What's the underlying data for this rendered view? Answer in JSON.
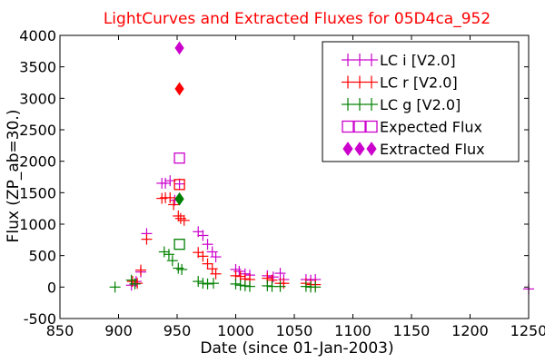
{
  "chart_data": {
    "type": "scatter",
    "title": "LightCurves and Extracted Fluxes for 05D4ca_952",
    "title_color": "#ff0000",
    "xlabel": "Date (since 01-Jan-2003)",
    "ylabel": "Flux (ZP_ab=30.)",
    "xlim": [
      850,
      1250
    ],
    "ylim": [
      -500,
      4000
    ],
    "xticks": [
      850,
      900,
      950,
      1000,
      1050,
      1100,
      1150,
      1200,
      1250
    ],
    "yticks": [
      -500,
      0,
      500,
      1000,
      1500,
      2000,
      2500,
      3000,
      3500,
      4000
    ],
    "grid": false,
    "legend_position": "top-right",
    "series": [
      {
        "name": "LC i [V2.0]",
        "marker": "plus",
        "color": "#cc00cc",
        "points": [
          [
            911,
            30
          ],
          [
            915,
            90
          ],
          [
            919,
            240
          ],
          [
            924,
            850
          ],
          [
            937,
            1650
          ],
          [
            940,
            1650
          ],
          [
            944,
            1690
          ],
          [
            948,
            1380
          ],
          [
            952,
            1640
          ],
          [
            968,
            880
          ],
          [
            972,
            820
          ],
          [
            976,
            680
          ],
          [
            980,
            560
          ],
          [
            983,
            480
          ],
          [
            1000,
            280
          ],
          [
            1003,
            250
          ],
          [
            1008,
            210
          ],
          [
            1012,
            190
          ],
          [
            1027,
            180
          ],
          [
            1032,
            160
          ],
          [
            1038,
            220
          ],
          [
            1041,
            120
          ],
          [
            1060,
            120
          ],
          [
            1064,
            110
          ],
          [
            1068,
            120
          ],
          [
            1250,
            -30
          ]
        ]
      },
      {
        "name": "LC r [V2.0]",
        "marker": "plus",
        "color": "#ff0000",
        "points": [
          [
            912,
            90
          ],
          [
            916,
            60
          ],
          [
            919,
            270
          ],
          [
            924,
            760
          ],
          [
            937,
            1410
          ],
          [
            940,
            1420
          ],
          [
            944,
            1420
          ],
          [
            947,
            1310
          ],
          [
            951,
            1130
          ],
          [
            953,
            1090
          ],
          [
            956,
            1060
          ],
          [
            968,
            550
          ],
          [
            972,
            490
          ],
          [
            976,
            370
          ],
          [
            980,
            290
          ],
          [
            983,
            210
          ],
          [
            1000,
            180
          ],
          [
            1004,
            170
          ],
          [
            1008,
            130
          ],
          [
            1012,
            120
          ],
          [
            1027,
            140
          ],
          [
            1031,
            110
          ],
          [
            1038,
            60
          ],
          [
            1041,
            60
          ],
          [
            1060,
            60
          ],
          [
            1064,
            40
          ],
          [
            1068,
            40
          ]
        ]
      },
      {
        "name": "LC g [V2.0]",
        "marker": "plus",
        "color": "#008000",
        "points": [
          [
            897,
            0
          ],
          [
            911,
            110
          ],
          [
            914,
            50
          ],
          [
            939,
            560
          ],
          [
            943,
            520
          ],
          [
            946,
            420
          ],
          [
            951,
            300
          ],
          [
            954,
            280
          ],
          [
            968,
            90
          ],
          [
            972,
            60
          ],
          [
            976,
            50
          ],
          [
            981,
            60
          ],
          [
            1000,
            50
          ],
          [
            1004,
            30
          ],
          [
            1008,
            20
          ],
          [
            1012,
            10
          ],
          [
            1027,
            20
          ],
          [
            1031,
            10
          ],
          [
            1038,
            10
          ],
          [
            1060,
            10
          ],
          [
            1064,
            0
          ],
          [
            1068,
            0
          ]
        ]
      },
      {
        "name": "Expected Flux",
        "marker": "square-open",
        "color": "#cc00cc",
        "points": [
          [
            952,
            2050
          ],
          [
            952,
            1630
          ],
          [
            952,
            680
          ]
        ],
        "point_colors": [
          "#cc00cc",
          "#ff0000",
          "#008000"
        ]
      },
      {
        "name": "Extracted Flux",
        "marker": "diamond-filled",
        "color": "#cc00cc",
        "points": [
          [
            952,
            3800
          ],
          [
            952,
            3150
          ],
          [
            952,
            1400
          ]
        ],
        "point_colors": [
          "#cc00cc",
          "#ff0000",
          "#008000"
        ]
      }
    ]
  }
}
